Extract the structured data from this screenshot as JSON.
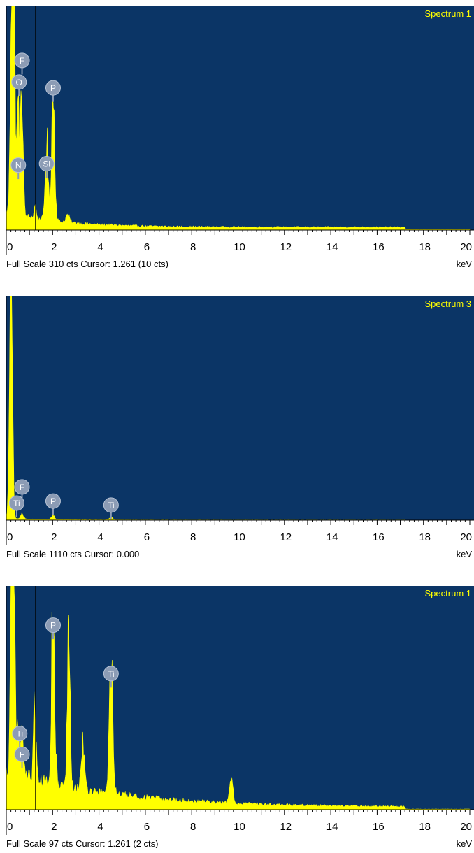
{
  "colors": {
    "plot_background": "#0b3566",
    "spectrum_fill": "#ffff00",
    "spectrum_label": "#ffff00",
    "marker_fill": "#8c9cb5",
    "cursor_line": "#000000"
  },
  "chart_data": [
    {
      "type": "area",
      "title": "Spectrum 1",
      "xlabel": "keV",
      "xlim": [
        0,
        20
      ],
      "x_ticks": [
        "0",
        "2",
        "4",
        "6",
        "8",
        "10",
        "12",
        "14",
        "16",
        "18",
        "20"
      ],
      "footer": "Full Scale 310 cts Cursor: 1.261  (10 cts)",
      "unit_label": "keV",
      "full_scale": 310,
      "cursor_kev": 1.261,
      "ylim": [
        0,
        310
      ],
      "peaks": [
        {
          "x": 0.28,
          "y": 560,
          "w": 0.07
        },
        {
          "x": 0.52,
          "y": 150,
          "w": 0.06
        },
        {
          "x": 0.68,
          "y": 175,
          "w": 0.05
        },
        {
          "x": 1.25,
          "y": 18,
          "w": 0.05
        },
        {
          "x": 1.74,
          "y": 110,
          "w": 0.06
        },
        {
          "x": 2.02,
          "y": 180,
          "w": 0.07
        },
        {
          "x": 2.65,
          "y": 10,
          "w": 0.08
        }
      ],
      "background": {
        "a": 22,
        "decay": 0.45,
        "floor": 4
      },
      "markers": [
        {
          "label": "F",
          "x": 0.68,
          "y": 235
        },
        {
          "label": "O",
          "x": 0.55,
          "y": 205
        },
        {
          "label": "P",
          "x": 2.02,
          "y": 197
        },
        {
          "label": "N",
          "x": 0.52,
          "y": 90
        },
        {
          "label": "Si",
          "x": 1.74,
          "y": 92
        }
      ]
    },
    {
      "type": "area",
      "title": "Spectrum 3",
      "xlabel": "keV",
      "xlim": [
        0,
        20
      ],
      "x_ticks": [
        "0",
        "2",
        "4",
        "6",
        "8",
        "10",
        "12",
        "14",
        "16",
        "18",
        "20"
      ],
      "footer": "Full Scale 1110 cts Cursor: 0.000",
      "unit_label": "keV",
      "full_scale": 1110,
      "cursor_kev": 0.0,
      "ylim": [
        0,
        1110
      ],
      "peaks": [
        {
          "x": 0.2,
          "y": 1500,
          "w": 0.06
        },
        {
          "x": 0.68,
          "y": 28,
          "w": 0.06
        },
        {
          "x": 2.02,
          "y": 22,
          "w": 0.07
        },
        {
          "x": 4.52,
          "y": 12,
          "w": 0.08
        }
      ],
      "background": {
        "a": 8,
        "decay": 0.6,
        "floor": 1
      },
      "markers": [
        {
          "label": "F",
          "x": 0.68,
          "y": 165
        },
        {
          "label": "Ti",
          "x": 0.45,
          "y": 85
        },
        {
          "label": "P",
          "x": 2.02,
          "y": 95
        },
        {
          "label": "Ti",
          "x": 4.52,
          "y": 75
        }
      ]
    },
    {
      "type": "area",
      "title": "Spectrum 1",
      "xlabel": "keV",
      "xlim": [
        0,
        20
      ],
      "x_ticks": [
        "0",
        "2",
        "4",
        "6",
        "8",
        "10",
        "12",
        "14",
        "16",
        "18",
        "20"
      ],
      "footer": "Full Scale 97 cts Cursor: 1.261  (2 cts)",
      "unit_label": "keV",
      "full_scale": 97,
      "cursor_kev": 1.261,
      "ylim": [
        0,
        97
      ],
      "peaks": [
        {
          "x": 0.28,
          "y": 180,
          "w": 0.07
        },
        {
          "x": 0.52,
          "y": 22,
          "w": 0.05
        },
        {
          "x": 0.68,
          "y": 18,
          "w": 0.05
        },
        {
          "x": 1.22,
          "y": 40,
          "w": 0.05
        },
        {
          "x": 2.02,
          "y": 78,
          "w": 0.07
        },
        {
          "x": 2.7,
          "y": 80,
          "w": 0.06
        },
        {
          "x": 3.3,
          "y": 20,
          "w": 0.07
        },
        {
          "x": 4.52,
          "y": 56,
          "w": 0.08
        },
        {
          "x": 9.7,
          "y": 9,
          "w": 0.08
        }
      ],
      "background": {
        "a": 16,
        "decay": 0.22,
        "floor": 1
      },
      "markers": [
        {
          "label": "P",
          "x": 2.02,
          "y": 80
        },
        {
          "label": "Ti",
          "x": 4.52,
          "y": 59
        },
        {
          "label": "Ti",
          "x": 0.58,
          "y": 33
        },
        {
          "label": "F",
          "x": 0.68,
          "y": 24
        }
      ]
    }
  ]
}
